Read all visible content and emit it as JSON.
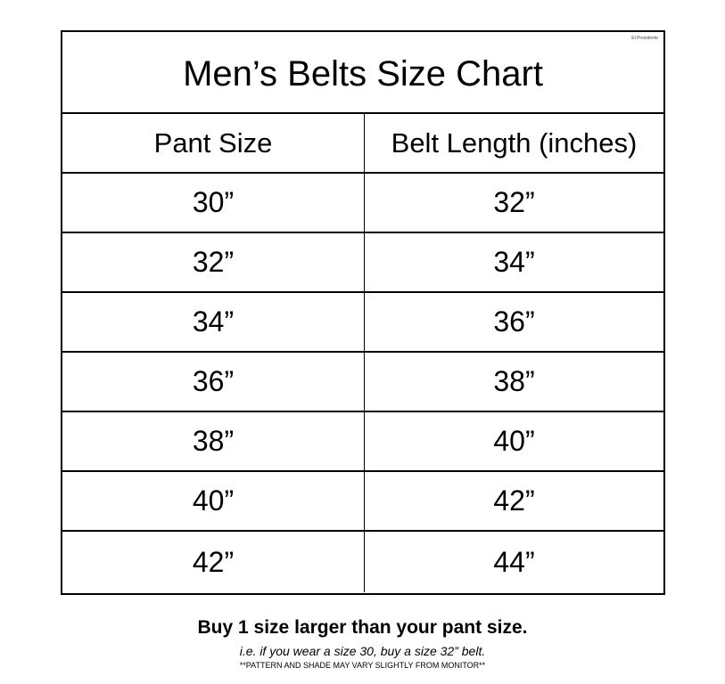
{
  "brand": "El Presidente",
  "title": "Men’s Belts Size Chart",
  "columns": [
    "Pant Size",
    "Belt Length (inches)"
  ],
  "rows": [
    [
      "30”",
      "32”"
    ],
    [
      "32”",
      "34”"
    ],
    [
      "34”",
      "36”"
    ],
    [
      "36”",
      "38”"
    ],
    [
      "38”",
      "40”"
    ],
    [
      "40”",
      "42”"
    ],
    [
      "42”",
      "44”"
    ]
  ],
  "notes": {
    "main": "Buy 1 size larger than your pant size.",
    "example": "i.e. if you wear a size 30, buy a size 32” belt.",
    "disclaimer": "**PATTERN AND SHADE MAY VARY SLIGHTLY FROM MONITOR**"
  }
}
